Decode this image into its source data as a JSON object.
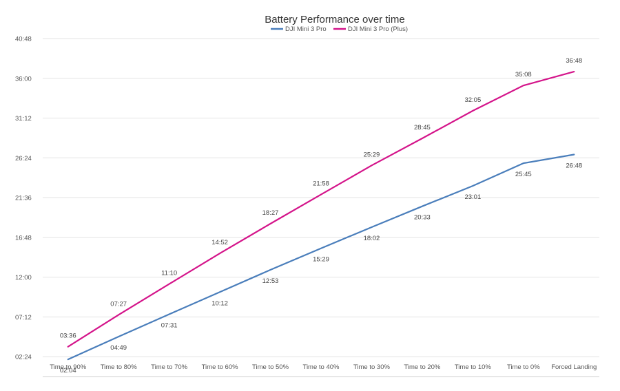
{
  "chart_data": {
    "type": "line",
    "title": "Battery Performance over time",
    "categories": [
      "Time to 90%",
      "Time to 80%",
      "Time to 70%",
      "Time to 60%",
      "Time to 50%",
      "Time to 40%",
      "Time to 30%",
      "Time to 20%",
      "Time to 10%",
      "Time to 0%",
      "Forced Landing"
    ],
    "y_ticks": [
      "02:24",
      "07:12",
      "12:00",
      "16:48",
      "21:36",
      "26:24",
      "31:12",
      "36:00",
      "40:48"
    ],
    "ylim": [
      "00:00",
      "40:48"
    ],
    "grid": true,
    "legend_position": "top-center",
    "series": [
      {
        "name": "DJI Mini 3 Pro",
        "color": "#4a7ebb",
        "values": [
          "02:04",
          "04:49",
          "07:31",
          "10:12",
          "12:53",
          "15:29",
          "18:02",
          "20:33",
          "23:01",
          "25:45",
          "26:48"
        ],
        "label_position": "below"
      },
      {
        "name": "DJI Mini 3 Pro (Plus)",
        "color": "#d4148a",
        "values": [
          "03:36",
          "07:27",
          "11:10",
          "14:52",
          "18:27",
          "21:58",
          "25:29",
          "28:45",
          "32:05",
          "35:08",
          "36:48"
        ],
        "label_position": "above"
      }
    ]
  }
}
